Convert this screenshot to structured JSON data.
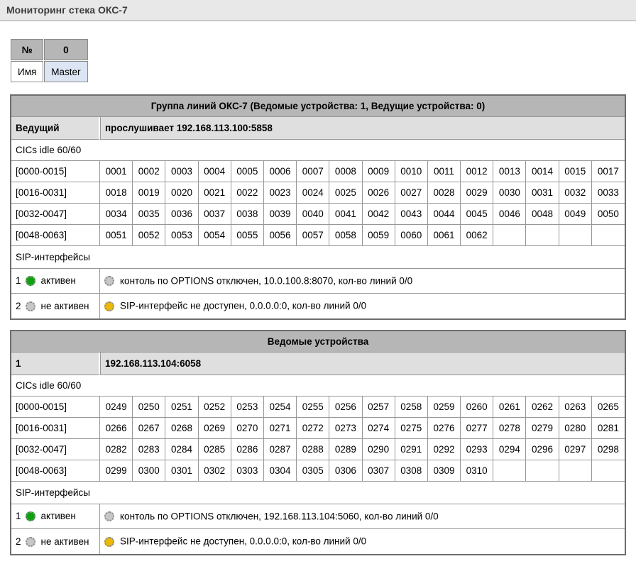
{
  "header": {
    "title": "Мониторинг стека ОКС-7"
  },
  "device": {
    "number_label": "№",
    "number_value": "0",
    "name_label": "Имя",
    "name_value": "Master"
  },
  "colors": {
    "led_active": "#0da10d",
    "led_inactive": "#c7c7c7",
    "led_warning": "#eeb902",
    "master_name_bg": "#dce5f4",
    "table_header_bg": "#b6b6b6",
    "subhead_bg": "#dfdfdf"
  },
  "groups": [
    {
      "title": "Группа линий ОКС-7 (Ведомые устройства: 1, Ведущие устройства: 0)",
      "role_label": "Ведущий",
      "role_value": "прослушивает 192.168.113.100:5858",
      "cics_idle": "CICs idle 60/60",
      "cic_rows": [
        {
          "range": "[0000-0015]",
          "values": [
            "0001",
            "0002",
            "0003",
            "0004",
            "0005",
            "0006",
            "0007",
            "0008",
            "0009",
            "0010",
            "0011",
            "0012",
            "0013",
            "0014",
            "0015",
            "0017"
          ]
        },
        {
          "range": "[0016-0031]",
          "values": [
            "0018",
            "0019",
            "0020",
            "0021",
            "0022",
            "0023",
            "0024",
            "0025",
            "0026",
            "0027",
            "0028",
            "0029",
            "0030",
            "0031",
            "0032",
            "0033"
          ]
        },
        {
          "range": "[0032-0047]",
          "values": [
            "0034",
            "0035",
            "0036",
            "0037",
            "0038",
            "0039",
            "0040",
            "0041",
            "0042",
            "0043",
            "0044",
            "0045",
            "0046",
            "0048",
            "0049",
            "0050"
          ]
        },
        {
          "range": "[0048-0063]",
          "values": [
            "0051",
            "0052",
            "0053",
            "0054",
            "0055",
            "0056",
            "0057",
            "0058",
            "0059",
            "0060",
            "0061",
            "0062",
            "",
            "",
            "",
            ""
          ]
        }
      ],
      "sip_label": "SIP-интерфейсы",
      "sip_rows": [
        {
          "num": "1",
          "status": "активен",
          "status_led": "active",
          "detail": "контоль по OPTIONS отключен, 10.0.100.8:8070, кол-во линий 0/0",
          "detail_led": "inactive"
        },
        {
          "num": "2",
          "status": "не активен",
          "status_led": "inactive",
          "detail": "SIP-интерфейс не доступен, 0.0.0.0:0, кол-во линий 0/0",
          "detail_led": "warning"
        }
      ]
    },
    {
      "title": "Ведомые устройства",
      "role_label": "1",
      "role_value": "192.168.113.104:6058",
      "cics_idle": "CICs idle 60/60",
      "cic_rows": [
        {
          "range": "[0000-0015]",
          "values": [
            "0249",
            "0250",
            "0251",
            "0252",
            "0253",
            "0254",
            "0255",
            "0256",
            "0257",
            "0258",
            "0259",
            "0260",
            "0261",
            "0262",
            "0263",
            "0265"
          ]
        },
        {
          "range": "[0016-0031]",
          "values": [
            "0266",
            "0267",
            "0268",
            "0269",
            "0270",
            "0271",
            "0272",
            "0273",
            "0274",
            "0275",
            "0276",
            "0277",
            "0278",
            "0279",
            "0280",
            "0281"
          ]
        },
        {
          "range": "[0032-0047]",
          "values": [
            "0282",
            "0283",
            "0284",
            "0285",
            "0286",
            "0287",
            "0288",
            "0289",
            "0290",
            "0291",
            "0292",
            "0293",
            "0294",
            "0296",
            "0297",
            "0298"
          ]
        },
        {
          "range": "[0048-0063]",
          "values": [
            "0299",
            "0300",
            "0301",
            "0302",
            "0303",
            "0304",
            "0305",
            "0306",
            "0307",
            "0308",
            "0309",
            "0310",
            "",
            "",
            "",
            ""
          ]
        }
      ],
      "sip_label": "SIP-интерфейсы",
      "sip_rows": [
        {
          "num": "1",
          "status": "активен",
          "status_led": "active",
          "detail": "контоль по OPTIONS отключен, 192.168.113.104:5060, кол-во линий 0/0",
          "detail_led": "inactive"
        },
        {
          "num": "2",
          "status": "не активен",
          "status_led": "inactive",
          "detail": "SIP-интерфейс не доступен, 0.0.0.0:0, кол-во линий 0/0",
          "detail_led": "warning"
        }
      ]
    }
  ]
}
